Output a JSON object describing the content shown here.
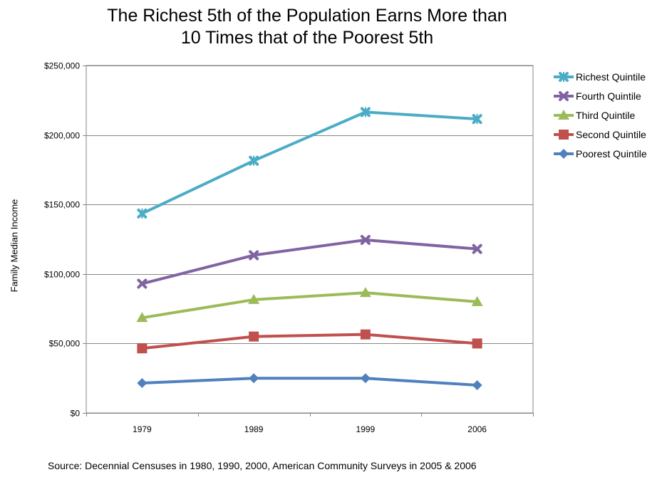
{
  "colors": {
    "richest": "#4bacc6",
    "fourth": "#8064a2",
    "third": "#9bbb59",
    "second": "#c0504d",
    "poorest": "#4f81bd"
  },
  "chart_data": {
    "type": "line",
    "title_lines": [
      "The Richest 5th of the Population Earns More than",
      "10 Times that of the Poorest 5th"
    ],
    "xlabel": "",
    "ylabel": "Family Median Income",
    "categories": [
      "1979",
      "1989",
      "1999",
      "2006"
    ],
    "ylim": [
      0,
      250000
    ],
    "y_ticks": [
      0,
      50000,
      100000,
      150000,
      200000,
      250000
    ],
    "y_tick_labels": [
      "$0",
      "$50,000",
      "$100,000",
      "$150,000",
      "$200,000",
      "$250,000"
    ],
    "grid": true,
    "legend_position": "right",
    "series": [
      {
        "name": "Richest Quintile",
        "color_key": "richest",
        "marker": "x-star",
        "values": [
          143500,
          181500,
          216500,
          211500
        ]
      },
      {
        "name": "Fourth Quintile",
        "color_key": "fourth",
        "marker": "x",
        "values": [
          93000,
          113500,
          124500,
          118000
        ]
      },
      {
        "name": "Third Quintile",
        "color_key": "third",
        "marker": "triangle",
        "values": [
          68500,
          81500,
          86500,
          80000
        ]
      },
      {
        "name": "Second Quintile",
        "color_key": "second",
        "marker": "square",
        "values": [
          46500,
          55000,
          56500,
          50000
        ]
      },
      {
        "name": "Poorest Quintile",
        "color_key": "poorest",
        "marker": "diamond",
        "values": [
          21500,
          25000,
          25000,
          20000
        ]
      }
    ]
  },
  "source_text": "Source: Decennial Censuses in 1980, 1990, 2000, American Community Surveys in 2005 & 2006"
}
